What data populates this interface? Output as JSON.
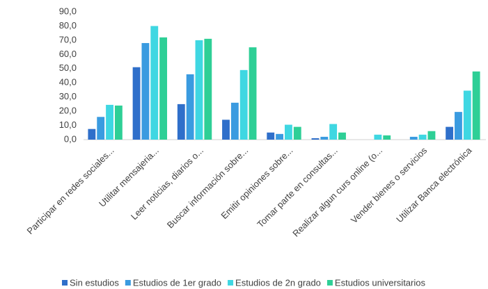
{
  "chart_data": {
    "type": "bar",
    "categories": [
      "Participar en redes sociales...",
      "Utilitar mensajeria...",
      "Leer noticias, diarios o...",
      "Buscar información sobre...",
      "Emitir opiniones sobre...",
      "Tomar parte en consultas...",
      "Realizar algun curs online (o...",
      "Vender bienes o servicios",
      "Utilizar Banca electrónica"
    ],
    "series": [
      {
        "name": "Sin estudios",
        "color": "#2f6fca",
        "values": [
          7.5,
          51,
          25,
          14,
          5,
          1,
          0,
          0,
          9
        ]
      },
      {
        "name": "Estudios de 1er grado",
        "color": "#3a9be0",
        "values": [
          16,
          68,
          46,
          26,
          4,
          2,
          0,
          2,
          19.5
        ]
      },
      {
        "name": "Estudios de 2n grado",
        "color": "#3fd7e2",
        "values": [
          24.5,
          80,
          70,
          49,
          10.5,
          11,
          3.5,
          3.5,
          34.5
        ]
      },
      {
        "name": "Estudios universitarios",
        "color": "#2ecf96",
        "values": [
          24,
          72,
          71,
          65,
          9,
          5,
          3,
          6,
          48
        ]
      }
    ],
    "ylim": [
      0,
      90
    ],
    "yticks": [
      {
        "value": 0,
        "label": "0,0"
      },
      {
        "value": 10,
        "label": "10,0"
      },
      {
        "value": 20,
        "label": "20,0"
      },
      {
        "value": 30,
        "label": "30,0"
      },
      {
        "value": 40,
        "label": "40,0"
      },
      {
        "value": 50,
        "label": "50,0"
      },
      {
        "value": 60,
        "label": "60,0"
      },
      {
        "value": 70,
        "label": "70,0"
      },
      {
        "value": 80,
        "label": "80,0"
      },
      {
        "value": 90,
        "label": "90,0"
      }
    ],
    "grid": false
  }
}
